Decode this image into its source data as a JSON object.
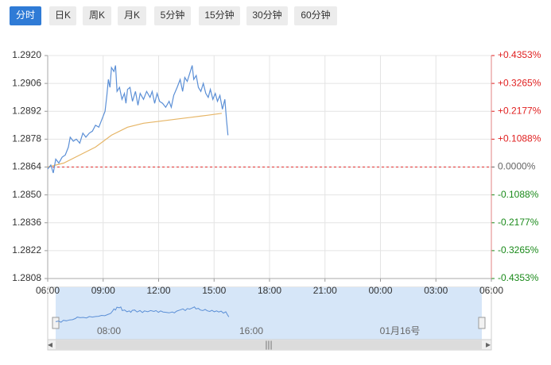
{
  "tabs": [
    "分时",
    "日K",
    "周K",
    "月K",
    "5分钟",
    "15分钟",
    "30分钟",
    "60分钟"
  ],
  "chart_data": {
    "type": "line",
    "series": [
      {
        "color": "#5b8fd6",
        "x": [
          0,
          10,
          18,
          26,
          36,
          47,
          57,
          67,
          73,
          83,
          93,
          104,
          114,
          124,
          135,
          145,
          155,
          166,
          176,
          186,
          192,
          197,
          202,
          207,
          215,
          220,
          225,
          233,
          241,
          249,
          254,
          259,
          267,
          275,
          285,
          293,
          300,
          311,
          321,
          332,
          339,
          347,
          355,
          363,
          373,
          383,
          394,
          401,
          409,
          420,
          430,
          438,
          445,
          453,
          461,
          469,
          474,
          482,
          489,
          497,
          505,
          513,
          521,
          528,
          536,
          544,
          551,
          559,
          567,
          575,
          580,
          585
        ],
        "values": [
          1.2863,
          1.2865,
          1.2861,
          1.2868,
          1.2866,
          1.2869,
          1.287,
          1.2874,
          1.2879,
          1.2877,
          1.2878,
          1.2876,
          1.2881,
          1.2879,
          1.2881,
          1.2882,
          1.2885,
          1.2884,
          1.2888,
          1.2892,
          1.29,
          1.2908,
          1.2904,
          1.2914,
          1.2912,
          1.2915,
          1.2902,
          1.2904,
          1.2898,
          1.2901,
          1.2896,
          1.2903,
          1.2904,
          1.2897,
          1.2902,
          1.2895,
          1.2901,
          1.2898,
          1.2902,
          1.2899,
          1.2902,
          1.2896,
          1.2901,
          1.2897,
          1.2896,
          1.2894,
          1.2897,
          1.2894,
          1.29,
          1.2904,
          1.2908,
          1.2902,
          1.2909,
          1.2907,
          1.2911,
          1.2915,
          1.2908,
          1.291,
          1.2904,
          1.2902,
          1.2906,
          1.2901,
          1.2899,
          1.2903,
          1.2898,
          1.2901,
          1.2897,
          1.29,
          1.2893,
          1.2898,
          1.2888,
          1.288
        ]
      },
      {
        "color": "#e6b566",
        "x": [
          0,
          52,
          104,
          155,
          207,
          259,
          311,
          363,
          414,
          466,
          518,
          565
        ],
        "values": [
          1.2864,
          1.2866,
          1.287,
          1.2874,
          1.288,
          1.2884,
          1.2886,
          1.2887,
          1.2888,
          1.2889,
          1.289,
          1.2891
        ]
      }
    ],
    "xlim": [
      0,
      1440
    ],
    "xticks": [
      {
        "value": 0,
        "label": "06:00"
      },
      {
        "value": 180,
        "label": "09:00"
      },
      {
        "value": 360,
        "label": "12:00"
      },
      {
        "value": 540,
        "label": "15:00"
      },
      {
        "value": 720,
        "label": "18:00"
      },
      {
        "value": 900,
        "label": "21:00"
      },
      {
        "value": 1080,
        "label": "00:00"
      },
      {
        "value": 1260,
        "label": "03:00"
      },
      {
        "value": 1440,
        "label": "06:00"
      }
    ],
    "ylim": [
      1.2808,
      1.292
    ],
    "yticks": [
      {
        "value": 1.292,
        "label": "1.2920"
      },
      {
        "value": 1.2906,
        "label": "1.2906"
      },
      {
        "value": 1.2892,
        "label": "1.2892"
      },
      {
        "value": 1.2878,
        "label": "1.2878"
      },
      {
        "value": 1.2864,
        "label": "1.2864"
      },
      {
        "value": 1.285,
        "label": "1.2850"
      },
      {
        "value": 1.2836,
        "label": "1.2836"
      },
      {
        "value": 1.2822,
        "label": "1.2822"
      },
      {
        "value": 1.2808,
        "label": "1.2808"
      }
    ],
    "y2lim": [
      -0.4353,
      0.4353
    ],
    "y2ticks": [
      {
        "value": 0.4353,
        "label": "+0.4353%"
      },
      {
        "value": 0.3265,
        "label": "+0.3265%"
      },
      {
        "value": 0.2177,
        "label": "+0.2177%"
      },
      {
        "value": 0.1088,
        "label": "+0.1088%"
      },
      {
        "value": 0,
        "label": "0.0000%"
      },
      {
        "value": -0.1088,
        "label": "-0.1088%"
      },
      {
        "value": -0.2177,
        "label": "-0.2177%"
      },
      {
        "value": -0.3265,
        "label": "-0.3265%"
      },
      {
        "value": -0.4353,
        "label": "-0.4353%"
      }
    ],
    "y2_colors": {
      "positive": "#e02020",
      "zero": "#666666",
      "negative": "#1a8a1a"
    },
    "reference_line": {
      "value": 1.2864,
      "color": "#e03030"
    },
    "grid": true
  },
  "navigator": {
    "labels": [
      "08:00",
      "16:00",
      "01月16号"
    ]
  }
}
